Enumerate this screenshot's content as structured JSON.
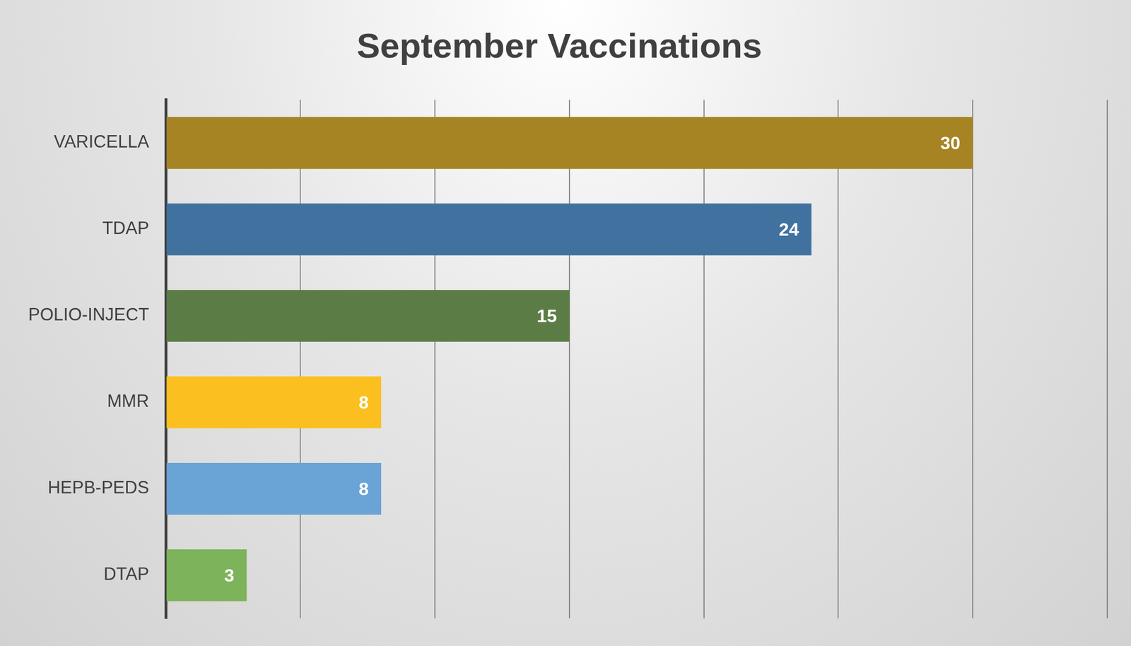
{
  "chart_data": {
    "type": "bar",
    "title": "September Vaccinations",
    "orientation": "horizontal",
    "categories": [
      "VARICELLA",
      "TDAP",
      "POLIO-INJECT",
      "MMR",
      "HEPB-PEDS",
      "DTAP"
    ],
    "values": [
      30,
      24,
      15,
      8,
      8,
      3
    ],
    "colors": [
      "#a68424",
      "#41729f",
      "#5b7d45",
      "#fbbf1f",
      "#6aa3d5",
      "#7db35a"
    ],
    "xlim": [
      0,
      35
    ],
    "xticks": [
      0,
      5,
      10,
      15,
      20,
      25,
      30,
      35
    ],
    "grid": true,
    "data_labels": true,
    "tick_labels": "y"
  }
}
